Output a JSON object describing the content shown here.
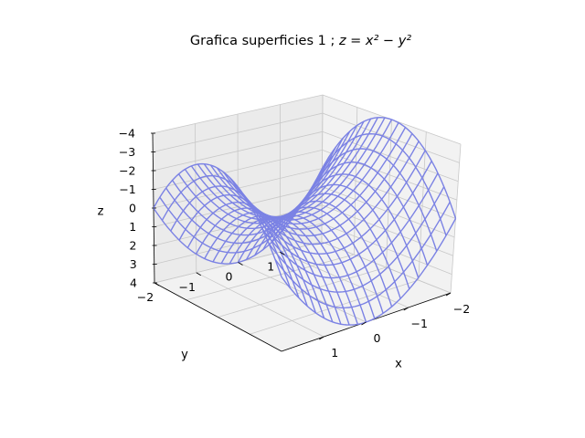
{
  "chart_data": {
    "type": "surface-3d-wireframe",
    "title": "Grafica superficies 1 ; ",
    "title_formula": "z = x² − y²",
    "function": "z = x^2 - y^2",
    "xlabel": "x",
    "ylabel": "y",
    "zlabel": "z",
    "xlim": [
      -2,
      2
    ],
    "ylim": [
      -2,
      2
    ],
    "zlim": [
      4,
      -4
    ],
    "x_ticks": [
      "1",
      "0",
      "−1",
      "−2"
    ],
    "y_ticks": [
      "1",
      "0",
      "−1",
      "−2"
    ],
    "z_ticks": [
      "−4",
      "−3",
      "−2",
      "−1",
      "0",
      "1",
      "2",
      "3",
      "4"
    ],
    "z_tick_values": [
      -4,
      -3,
      -2,
      -1,
      0,
      1,
      2,
      3,
      4
    ],
    "x_range": [
      -2,
      2
    ],
    "y_range": [
      -2,
      2
    ],
    "grid_resolution": 21,
    "grid": true,
    "wire_color": "#7b82e4"
  }
}
